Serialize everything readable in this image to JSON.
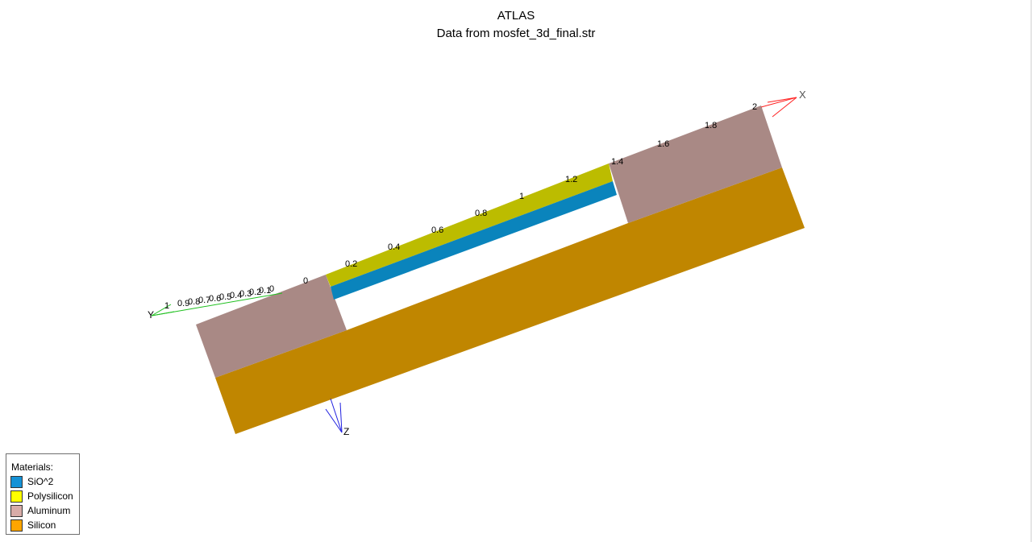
{
  "header": {
    "title": "ATLAS",
    "subtitle": "Data from mosfet_3d_final.str"
  },
  "axes": {
    "x_label": "X",
    "y_label": "Y",
    "z_label": "Z",
    "x_ticks": [
      "0",
      "0.2",
      "0.4",
      "0.6",
      "0.8",
      "1",
      "1.2",
      "1.4",
      "1.6",
      "1.8",
      "2"
    ],
    "y_ticks": [
      "1",
      "0.9",
      "0.8",
      "0.7",
      "0.6",
      "0.5",
      "0.4",
      "0.3",
      "0.2",
      "0.1",
      "0"
    ],
    "x_color": "#ff2020",
    "y_color": "#20c020",
    "z_color": "#2020e0"
  },
  "legend": {
    "title": "Materials:",
    "items": [
      {
        "label": "SiO^2",
        "color": "#1592d6"
      },
      {
        "label": "Polysilicon",
        "color": "#ffff00"
      },
      {
        "label": "Aluminum",
        "color": "#d8aca8"
      },
      {
        "label": "Silicon",
        "color": "#ffa500"
      }
    ]
  },
  "rendered_colors": {
    "silicon": "#c08600",
    "aluminum": "#a98985",
    "polysilicon": "#bcbc00",
    "oxide": "#0a84bc"
  }
}
